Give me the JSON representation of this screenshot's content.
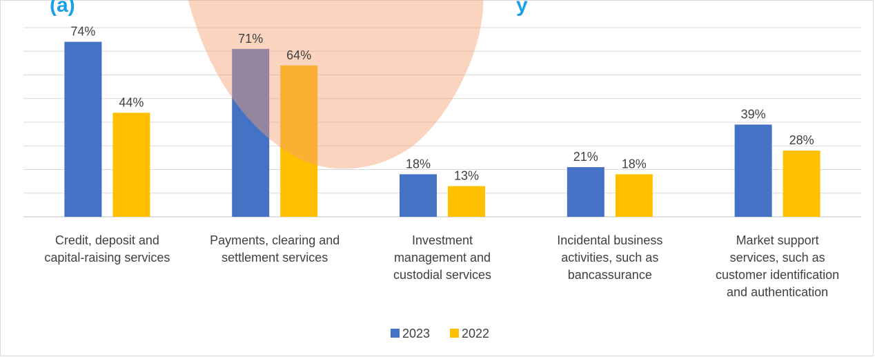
{
  "colors": {
    "series_2023": "#4472C4",
    "series_2022": "#FFC000",
    "title_blue": "#1aa0e8",
    "watermark": "#f5a070"
  },
  "chart_data": {
    "type": "bar",
    "categories": [
      [
        "Credit, deposit and",
        "capital-raising services"
      ],
      [
        "Payments, clearing and",
        "settlement services"
      ],
      [
        "Investment",
        "management and",
        "custodial services"
      ],
      [
        "Incidental business",
        "activities, such as",
        "bancassurance"
      ],
      [
        "Market support",
        "services, such as",
        "customer identification",
        "and authentication"
      ]
    ],
    "series": [
      {
        "name": "2023",
        "values": [
          74,
          71,
          18,
          21,
          39
        ],
        "labels": [
          "74%",
          "71%",
          "18%",
          "21%",
          "39%"
        ],
        "color": "#4472C4"
      },
      {
        "name": "2022",
        "values": [
          44,
          64,
          13,
          18,
          28
        ],
        "labels": [
          "44%",
          "64%",
          "13%",
          "18%",
          "28%"
        ],
        "color": "#FFC000"
      }
    ],
    "ylim": [
      0,
      80
    ],
    "gridlines": true,
    "legend": "bottom-center",
    "title_fragments": [
      "(a)",
      "y"
    ]
  }
}
